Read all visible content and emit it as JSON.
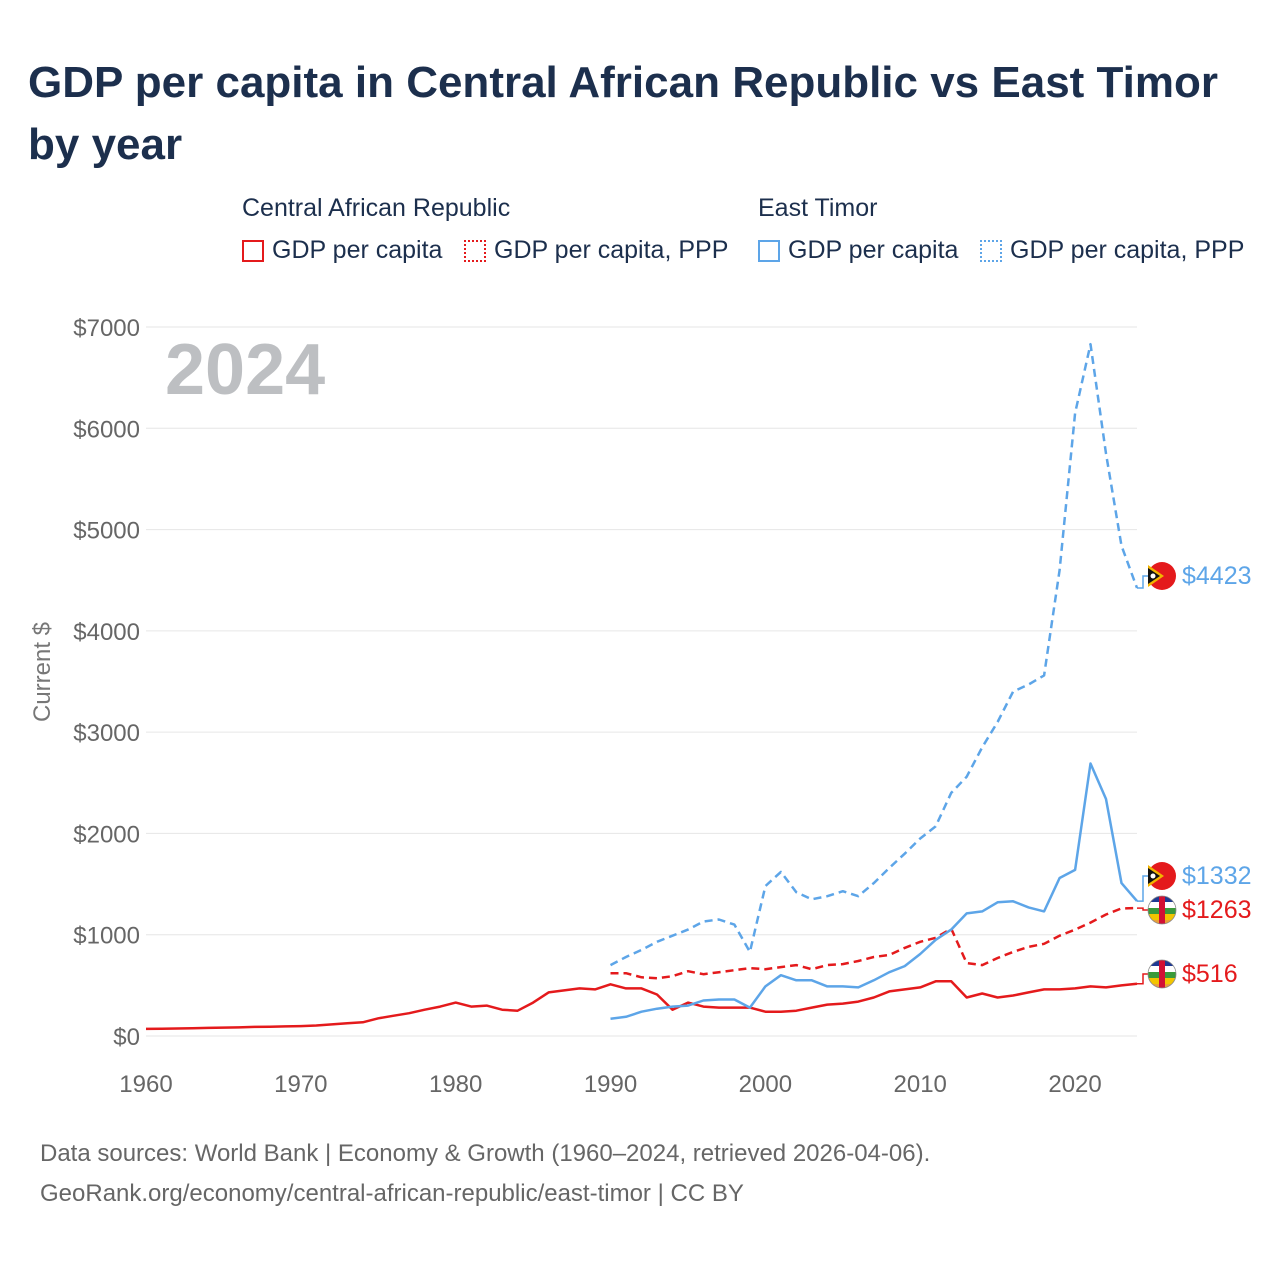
{
  "title": "GDP per capita in Central African Republic vs East Timor by year",
  "legend": {
    "groups": [
      {
        "name": "Central African Republic",
        "items": [
          "GDP per capita",
          "GDP per capita, PPP"
        ]
      },
      {
        "name": "East Timor",
        "items": [
          "GDP per capita",
          "GDP per capita, PPP"
        ]
      }
    ]
  },
  "colors": {
    "car": "#e41a1c",
    "tl": "#5da5e8"
  },
  "year_label": "2024",
  "footer": {
    "line1": "Data sources: World Bank | Economy & Growth (1960–2024, retrieved 2026-04-06).",
    "line2": "GeoRank.org/economy/central-african-republic/east-timor | CC BY"
  },
  "chart_data": {
    "type": "line",
    "title": "GDP per capita in Central African Republic vs East Timor by year",
    "xlabel": "",
    "ylabel": "Current $",
    "xlim": [
      1960,
      2024
    ],
    "ylim": [
      0,
      7000
    ],
    "x_ticks": [
      1960,
      1970,
      1980,
      1990,
      2000,
      2010,
      2020
    ],
    "y_ticks": [
      0,
      1000,
      2000,
      3000,
      4000,
      5000,
      6000,
      7000
    ],
    "y_tick_labels": [
      "$0",
      "$1000",
      "$2000",
      "$3000",
      "$4000",
      "$5000",
      "$6000",
      "$7000"
    ],
    "series": [
      {
        "name": "Central African Republic – GDP per capita",
        "style": "solid",
        "color": "#e41a1c",
        "x": [
          1960,
          1961,
          1962,
          1963,
          1964,
          1965,
          1966,
          1967,
          1968,
          1969,
          1970,
          1971,
          1972,
          1973,
          1974,
          1975,
          1976,
          1977,
          1978,
          1979,
          1980,
          1981,
          1982,
          1983,
          1984,
          1985,
          1986,
          1987,
          1988,
          1989,
          1990,
          1991,
          1992,
          1993,
          1994,
          1995,
          1996,
          1997,
          1998,
          1999,
          2000,
          2001,
          2002,
          2003,
          2004,
          2005,
          2006,
          2007,
          2008,
          2009,
          2010,
          2011,
          2012,
          2013,
          2014,
          2015,
          2016,
          2017,
          2018,
          2019,
          2020,
          2021,
          2022,
          2023,
          2024
        ],
        "values": [
          70,
          72,
          74,
          76,
          80,
          83,
          85,
          90,
          92,
          95,
          98,
          104,
          115,
          125,
          135,
          175,
          200,
          225,
          260,
          290,
          330,
          290,
          300,
          260,
          250,
          330,
          430,
          450,
          470,
          460,
          510,
          470,
          470,
          410,
          260,
          330,
          290,
          280,
          280,
          280,
          240,
          240,
          250,
          280,
          310,
          320,
          340,
          380,
          440,
          460,
          480,
          540,
          540,
          380,
          420,
          380,
          400,
          430,
          460,
          460,
          470,
          490,
          480,
          500,
          516
        ],
        "end_label": "$516"
      },
      {
        "name": "Central African Republic – GDP per capita, PPP",
        "style": "dashed",
        "color": "#e41a1c",
        "x": [
          1990,
          1991,
          1992,
          1993,
          1994,
          1995,
          1996,
          1997,
          1998,
          1999,
          2000,
          2001,
          2002,
          2003,
          2004,
          2005,
          2006,
          2007,
          2008,
          2009,
          2010,
          2011,
          2012,
          2013,
          2014,
          2015,
          2016,
          2017,
          2018,
          2019,
          2020,
          2021,
          2022,
          2023,
          2024
        ],
        "values": [
          620,
          620,
          580,
          570,
          590,
          640,
          610,
          630,
          650,
          670,
          660,
          680,
          700,
          660,
          700,
          710,
          740,
          780,
          800,
          870,
          930,
          970,
          1060,
          720,
          700,
          770,
          830,
          880,
          910,
          990,
          1050,
          1120,
          1200,
          1260,
          1263
        ],
        "end_label": "$1263"
      },
      {
        "name": "East Timor – GDP per capita",
        "style": "solid",
        "color": "#5da5e8",
        "x": [
          1990,
          1991,
          1992,
          1993,
          1994,
          1995,
          1996,
          1997,
          1998,
          1999,
          2000,
          2001,
          2002,
          2003,
          2004,
          2005,
          2006,
          2007,
          2008,
          2009,
          2010,
          2011,
          2012,
          2013,
          2014,
          2015,
          2016,
          2017,
          2018,
          2019,
          2020,
          2021,
          2022,
          2023,
          2024
        ],
        "values": [
          170,
          190,
          240,
          270,
          290,
          300,
          350,
          360,
          360,
          280,
          490,
          600,
          550,
          550,
          490,
          490,
          480,
          550,
          630,
          690,
          810,
          950,
          1050,
          1210,
          1230,
          1320,
          1330,
          1270,
          1230,
          1560,
          1640,
          2690,
          2340,
          1510,
          1332
        ],
        "end_label": "$1332"
      },
      {
        "name": "East Timor – GDP per capita, PPP",
        "style": "dashed",
        "color": "#5da5e8",
        "x": [
          1990,
          1991,
          1992,
          1993,
          1994,
          1995,
          1996,
          1997,
          1998,
          1999,
          2000,
          2001,
          2002,
          2003,
          2004,
          2005,
          2006,
          2007,
          2008,
          2009,
          2010,
          2011,
          2012,
          2013,
          2014,
          2015,
          2016,
          2017,
          2018,
          2019,
          2020,
          2021,
          2022,
          2023,
          2024
        ],
        "values": [
          700,
          780,
          850,
          930,
          990,
          1050,
          1130,
          1150,
          1100,
          830,
          1480,
          1620,
          1420,
          1350,
          1380,
          1430,
          1380,
          1510,
          1660,
          1800,
          1950,
          2070,
          2400,
          2560,
          2850,
          3100,
          3400,
          3470,
          3560,
          4600,
          6150,
          6830,
          5750,
          4840,
          4423
        ],
        "end_label": "$4423"
      }
    ]
  }
}
